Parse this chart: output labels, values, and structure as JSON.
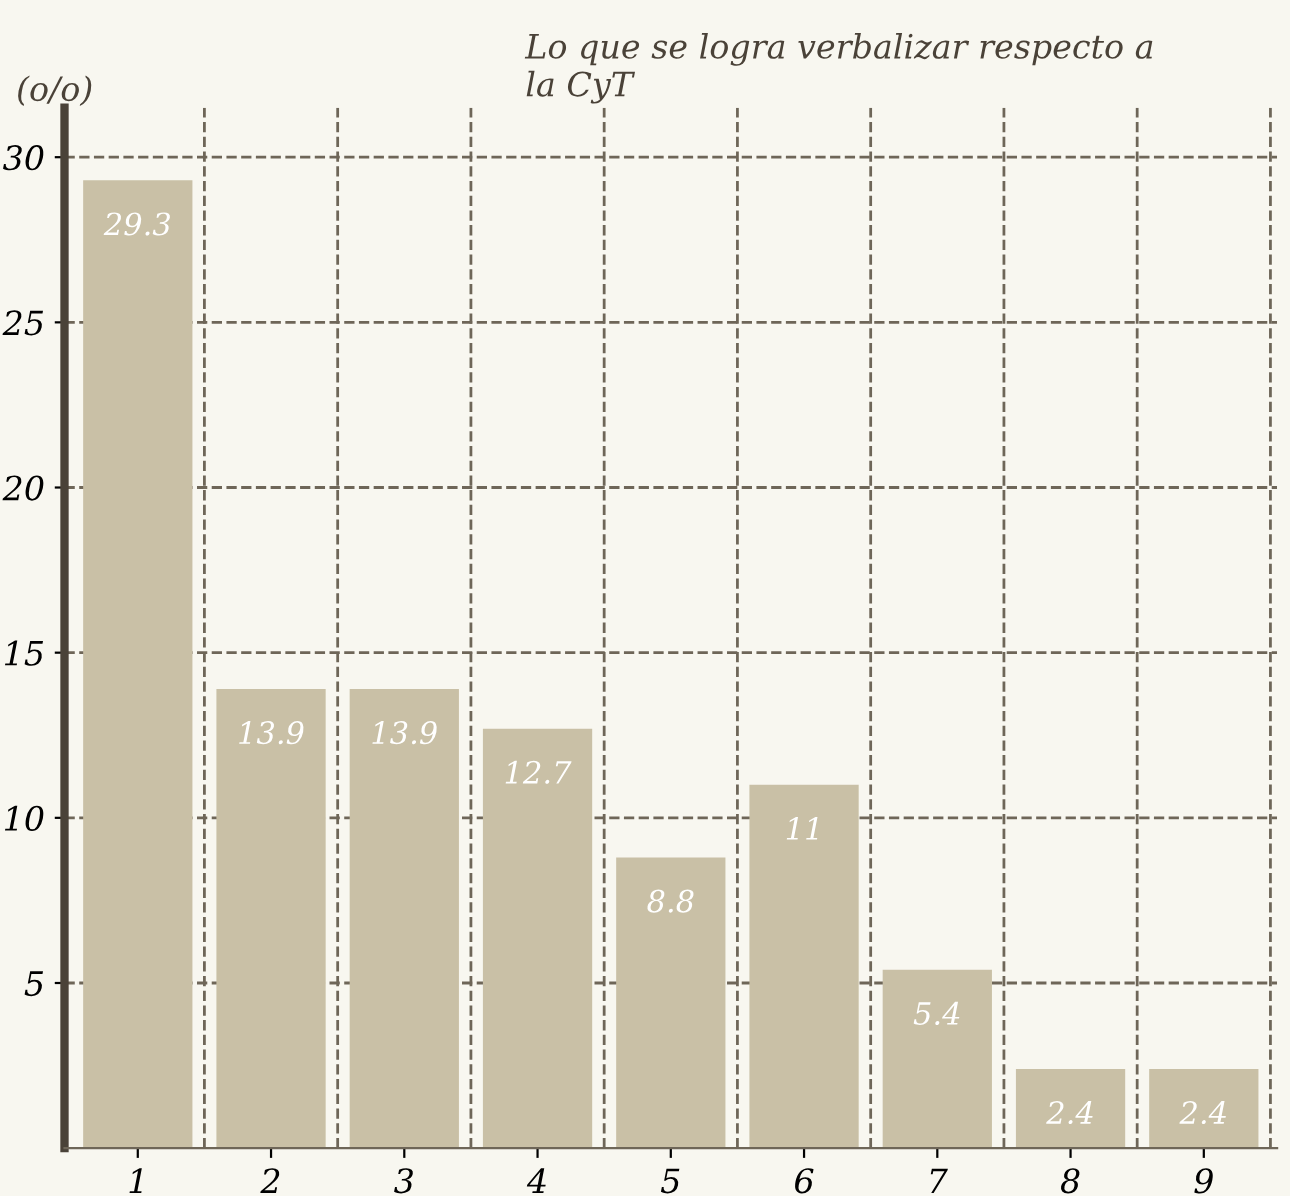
{
  "chart_data": {
    "type": "bar",
    "title": "Lo que se logra verbalizar respecto a\nla CyT",
    "ylabel": "(o/o)",
    "categories": [
      "1",
      "2",
      "3",
      "4",
      "5",
      "6",
      "7",
      "8",
      "9"
    ],
    "values": [
      29.3,
      13.9,
      13.9,
      12.7,
      8.8,
      11,
      5.4,
      2.4,
      2.4
    ],
    "color": "#c9c0a6",
    "data_labels": true,
    "ylim": [
      0,
      31.5
    ],
    "yticks": [
      5,
      10,
      15,
      20,
      25,
      30
    ],
    "grid": true,
    "line_style": "dashed"
  }
}
